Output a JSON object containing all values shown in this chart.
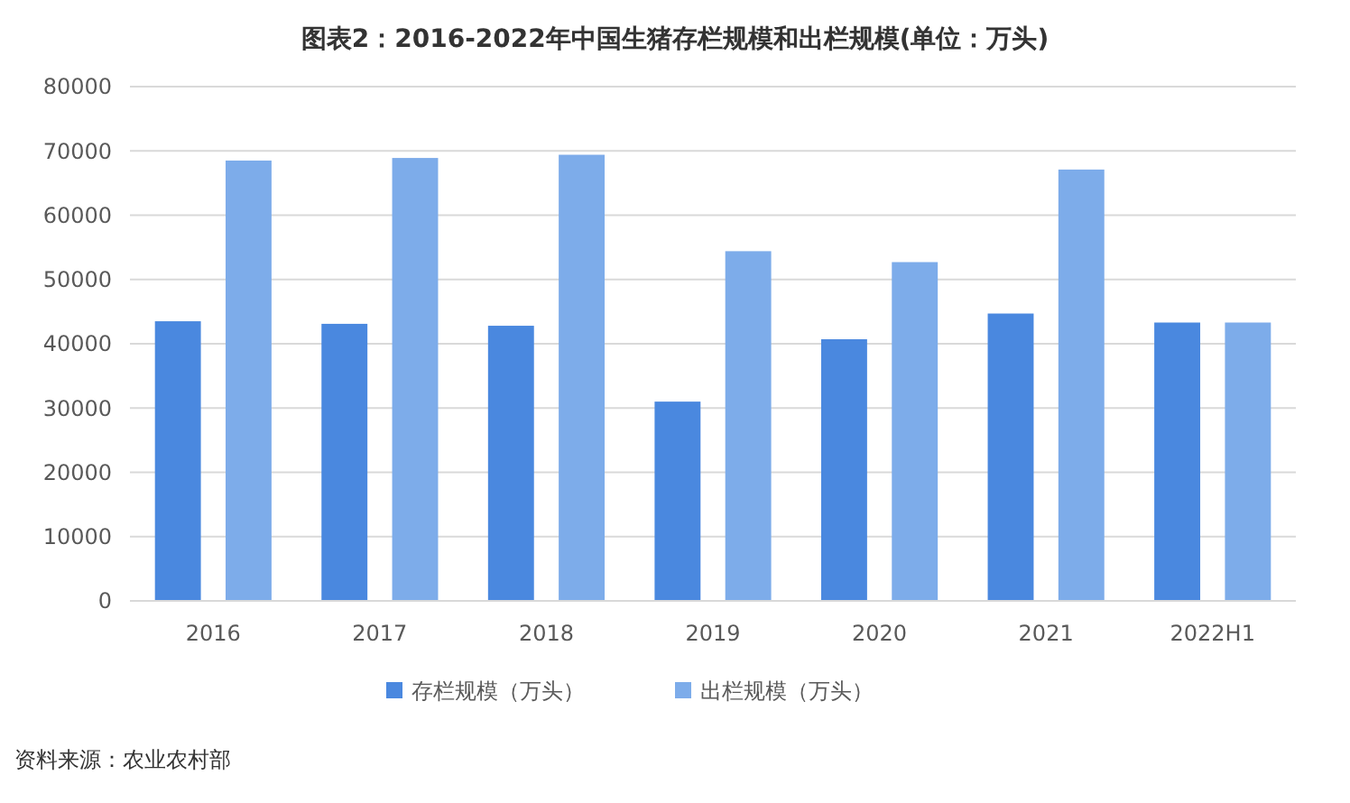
{
  "chart_data": {
    "type": "bar",
    "title": "图表2：2016-2022年中国生猪存栏规模和出栏规模(单位：万头)",
    "categories": [
      "2016",
      "2017",
      "2018",
      "2019",
      "2020",
      "2021",
      "2022H1"
    ],
    "series": [
      {
        "name": "存栏规模（万头）",
        "color": "#4a88df",
        "values": [
          43500,
          43100,
          42800,
          31000,
          40700,
          44700,
          43300
        ]
      },
      {
        "name": "出栏规模（万头）",
        "color": "#7dacea",
        "values": [
          68500,
          68900,
          69400,
          54400,
          52700,
          67100,
          43300
        ]
      }
    ],
    "ylim": [
      0,
      80000
    ],
    "yticks": [
      0,
      10000,
      20000,
      30000,
      40000,
      50000,
      60000,
      70000,
      80000
    ],
    "grid": "y",
    "legend": "bottom",
    "annotations": [
      "资料来源：农业农村部"
    ]
  }
}
